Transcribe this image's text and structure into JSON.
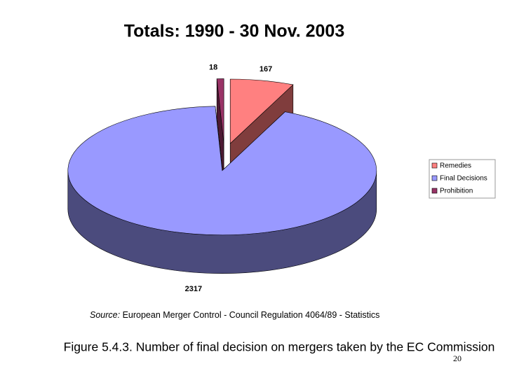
{
  "chart_data": {
    "type": "pie3d",
    "title": "Totals:  1990 - 30 Nov. 2003",
    "categories": [
      "Remedies",
      "Final Decisions",
      "Prohibition"
    ],
    "values": [
      167,
      2317,
      18
    ],
    "colors": [
      "#ff8080",
      "#9999ff",
      "#993366"
    ],
    "side_colors": [
      "#803d3d",
      "#4b4b7d",
      "#4d1a33"
    ],
    "legend": "right"
  },
  "source": {
    "label": "Source:",
    "text": " European Merger Control - Council Regulation 4064/89 - Statistics"
  },
  "caption": "Figure 5.4.3. Number of final decision on mergers taken by the EC Commission",
  "page_number": "20"
}
